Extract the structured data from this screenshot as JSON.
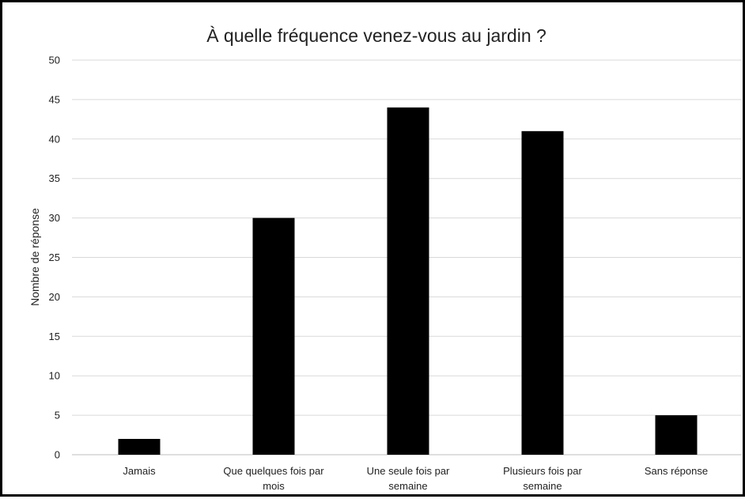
{
  "chart_data": {
    "type": "bar",
    "title": "À quelle fréquence venez-vous au jardin ?",
    "xlabel": "",
    "ylabel": "Nombre de réponse",
    "ylim": [
      0,
      50
    ],
    "yticks": [
      0,
      5,
      10,
      15,
      20,
      25,
      30,
      35,
      40,
      45,
      50
    ],
    "grid": true,
    "legend": "none",
    "bar_color": "#000000",
    "categories": [
      [
        "Jamais"
      ],
      [
        "Que quelques fois par",
        "mois"
      ],
      [
        "Une seule fois par",
        "semaine"
      ],
      [
        "Plusieurs fois par",
        "semaine"
      ],
      [
        "Sans réponse"
      ]
    ],
    "values": [
      2,
      30,
      44,
      41,
      5
    ]
  }
}
